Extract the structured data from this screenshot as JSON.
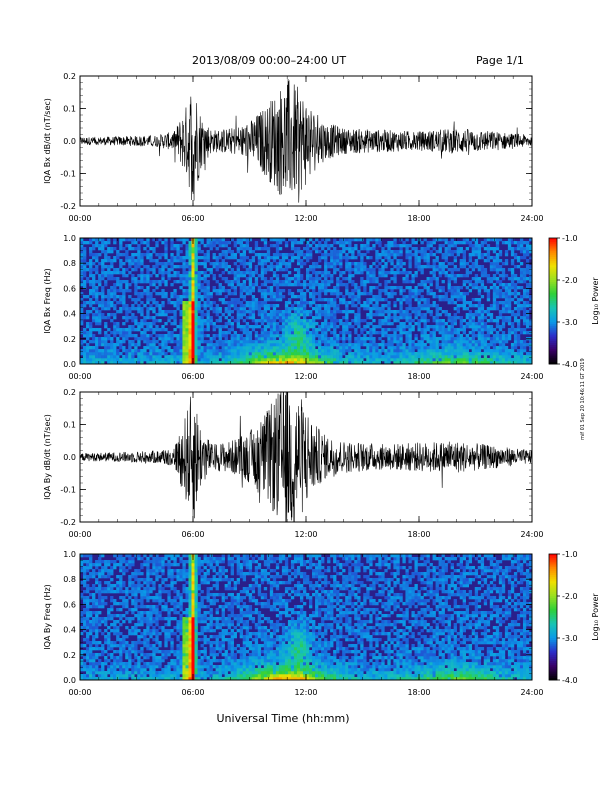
{
  "header": {
    "title": "2013/08/09  00:00–24:00 UT",
    "page": "Page 1/1"
  },
  "side_note": "mif 01 Sep 20 10:46:11 GT 2019",
  "xlabel": "Universal Time (hh:mm)",
  "colorbar_label": "Log₁₀ Power",
  "colorbar_ticks": [
    "-1.0",
    "-2.0",
    "-3.0",
    "-4.0"
  ],
  "colormap": [
    "#000000",
    "#3a0069",
    "#2c2ec9",
    "#0a9ae8",
    "#18c4b4",
    "#2ed03a",
    "#9ae020",
    "#f0e000",
    "#ff8800",
    "#ff0000"
  ],
  "chart_data": [
    {
      "type": "line",
      "title": "2013/08/09  00:00–24:00 UT",
      "ylabel": "IQA Bx dB/dt (nT/sec)",
      "xlabel": "Universal Time (hh:mm)",
      "xlim": [
        "00:00",
        "24:00"
      ],
      "x_ticks": [
        "00:00",
        "06:00",
        "12:00",
        "18:00",
        "24:00"
      ],
      "ylim": [
        -0.2,
        0.2
      ],
      "y_ticks": [
        "-0.2",
        "-0.1",
        "0.0",
        "0.1",
        "0.2"
      ],
      "envelope": {
        "x_hours": [
          0,
          2,
          4,
          5,
          5.7,
          6.0,
          6.4,
          7,
          8,
          9,
          10,
          10.5,
          11,
          11.5,
          12,
          12.5,
          13,
          14,
          16,
          18,
          20,
          22,
          24
        ],
        "amplitude": [
          0.012,
          0.014,
          0.018,
          0.03,
          0.12,
          0.21,
          0.09,
          0.035,
          0.04,
          0.06,
          0.12,
          0.16,
          0.2,
          0.17,
          0.14,
          0.09,
          0.06,
          0.04,
          0.035,
          0.03,
          0.04,
          0.03,
          0.018
        ]
      }
    },
    {
      "type": "heatmap",
      "ylabel": "IQA Bx Freq (Hz)",
      "xlabel": "Universal Time (hh:mm)",
      "xlim": [
        "00:00",
        "24:00"
      ],
      "x_ticks": [
        "00:00",
        "06:00",
        "12:00",
        "18:00",
        "24:00"
      ],
      "ylim": [
        0.0,
        1.0
      ],
      "y_ticks": [
        "0.0",
        "0.2",
        "0.4",
        "0.6",
        "0.8",
        "1.0"
      ],
      "color_range": [
        -4.0,
        -1.0
      ],
      "colorbar_label": "Log₁₀ Power"
    },
    {
      "type": "line",
      "ylabel": "IQA By dB/dt (nT/sec)",
      "xlabel": "Universal Time (hh:mm)",
      "xlim": [
        "00:00",
        "24:00"
      ],
      "x_ticks": [
        "00:00",
        "06:00",
        "12:00",
        "18:00",
        "24:00"
      ],
      "ylim": [
        -0.2,
        0.2
      ],
      "y_ticks": [
        "-0.2",
        "-0.1",
        "0.0",
        "0.1",
        "0.2"
      ],
      "envelope": {
        "x_hours": [
          0,
          2,
          4,
          5,
          5.7,
          6.0,
          6.4,
          7,
          8,
          9,
          10,
          10.5,
          11,
          11.5,
          12,
          12.5,
          13,
          14,
          16,
          18,
          20,
          22,
          24
        ],
        "amplitude": [
          0.012,
          0.015,
          0.02,
          0.03,
          0.15,
          0.22,
          0.1,
          0.04,
          0.05,
          0.08,
          0.15,
          0.2,
          0.24,
          0.21,
          0.16,
          0.1,
          0.07,
          0.05,
          0.04,
          0.045,
          0.05,
          0.035,
          0.02
        ]
      }
    },
    {
      "type": "heatmap",
      "ylabel": "IQA By Freq (Hz)",
      "xlabel": "Universal Time (hh:mm)",
      "xlim": [
        "00:00",
        "24:00"
      ],
      "x_ticks": [
        "00:00",
        "06:00",
        "12:00",
        "18:00",
        "24:00"
      ],
      "ylim": [
        0.0,
        1.0
      ],
      "y_ticks": [
        "0.0",
        "0.2",
        "0.4",
        "0.6",
        "0.8",
        "1.0"
      ],
      "color_range": [
        -4.0,
        -1.0
      ],
      "colorbar_label": "Log₁₀ Power"
    }
  ]
}
